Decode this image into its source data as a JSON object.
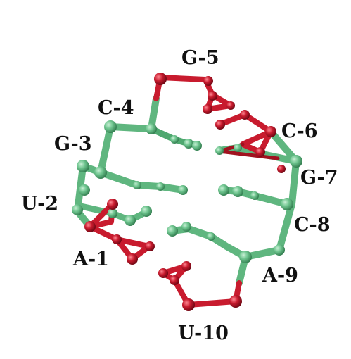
{
  "colors": {
    "green": "#6fc58f",
    "green_dark": "#3f8f5f",
    "red": "#c81b2e",
    "red_dark": "#7d0a18",
    "label": "#111111"
  },
  "residues": [
    {
      "id": "A-1",
      "label": "A-1",
      "color": "red"
    },
    {
      "id": "U-2",
      "label": "U-2",
      "color": "green"
    },
    {
      "id": "G-3",
      "label": "G-3",
      "color": "green"
    },
    {
      "id": "C-4",
      "label": "C-4",
      "color": "green"
    },
    {
      "id": "G-5",
      "label": "G-5",
      "color": "red"
    },
    {
      "id": "C-6",
      "label": "C-6",
      "color": "red"
    },
    {
      "id": "G-7",
      "label": "G-7",
      "color": "green"
    },
    {
      "id": "C-8",
      "label": "C-8",
      "color": "green"
    },
    {
      "id": "A-9",
      "label": "A-9",
      "color": "green"
    },
    {
      "id": "U-10",
      "label": "U-10",
      "color": "red"
    }
  ]
}
